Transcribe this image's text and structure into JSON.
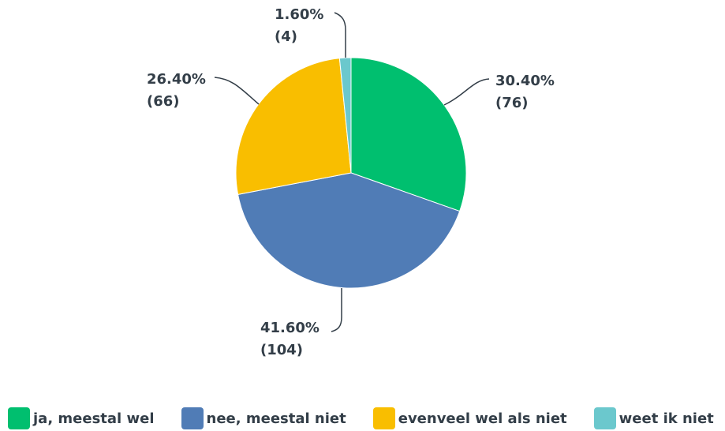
{
  "chart_data": {
    "type": "pie",
    "title": "",
    "categories": [
      "ja, meestal wel",
      "nee, meestal niet",
      "evenveel wel als niet",
      "weet ik niet"
    ],
    "values": [
      30.4,
      41.6,
      26.4,
      1.6
    ],
    "counts": [
      76,
      104,
      66,
      4
    ],
    "percent_labels": [
      "30.40%",
      "41.60%",
      "26.40%",
      "1.60%"
    ],
    "count_labels": [
      "(76)",
      "(104)",
      "(66)",
      "(4)"
    ],
    "colors": [
      "#00bf6f",
      "#507cb6",
      "#f9be00",
      "#6bc8cd"
    ],
    "legend_position": "bottom",
    "start": "top",
    "direction": "clockwise"
  }
}
